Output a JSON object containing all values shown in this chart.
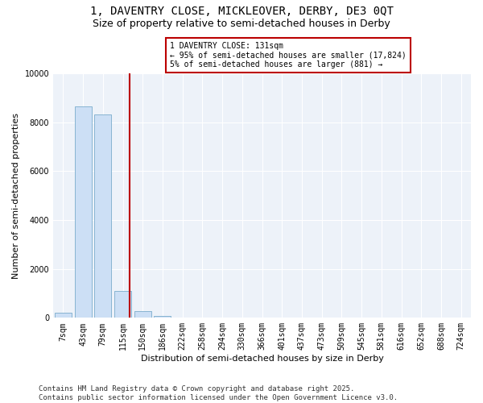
{
  "title_line1": "1, DAVENTRY CLOSE, MICKLEOVER, DERBY, DE3 0QT",
  "title_line2": "Size of property relative to semi-detached houses in Derby",
  "xlabel": "Distribution of semi-detached houses by size in Derby",
  "ylabel": "Number of semi-detached properties",
  "categories": [
    "7sqm",
    "43sqm",
    "79sqm",
    "115sqm",
    "150sqm",
    "186sqm",
    "222sqm",
    "258sqm",
    "294sqm",
    "330sqm",
    "366sqm",
    "401sqm",
    "437sqm",
    "473sqm",
    "509sqm",
    "545sqm",
    "581sqm",
    "616sqm",
    "652sqm",
    "688sqm",
    "724sqm"
  ],
  "values": [
    200,
    8650,
    8300,
    1100,
    270,
    70,
    0,
    0,
    0,
    0,
    0,
    0,
    0,
    0,
    0,
    0,
    0,
    0,
    0,
    0,
    0
  ],
  "bar_color": "#ccdff5",
  "bar_edge_color": "#7aaccc",
  "vline_x_index": 3.35,
  "vline_color": "#bb0000",
  "annotation_text": "1 DAVENTRY CLOSE: 131sqm\n← 95% of semi-detached houses are smaller (17,824)\n5% of semi-detached houses are larger (881) →",
  "annotation_box_color": "#ffffff",
  "annotation_box_edge": "#bb0000",
  "ylim": [
    0,
    10000
  ],
  "yticks": [
    0,
    2000,
    4000,
    6000,
    8000,
    10000
  ],
  "footer": "Contains HM Land Registry data © Crown copyright and database right 2025.\nContains public sector information licensed under the Open Government Licence v3.0.",
  "bg_color": "#ffffff",
  "plot_bg_color": "#edf2f9",
  "grid_color": "#ffffff",
  "title_fontsize": 10,
  "subtitle_fontsize": 9,
  "axis_label_fontsize": 8,
  "tick_fontsize": 7,
  "annotation_fontsize": 7,
  "footer_fontsize": 6.5
}
